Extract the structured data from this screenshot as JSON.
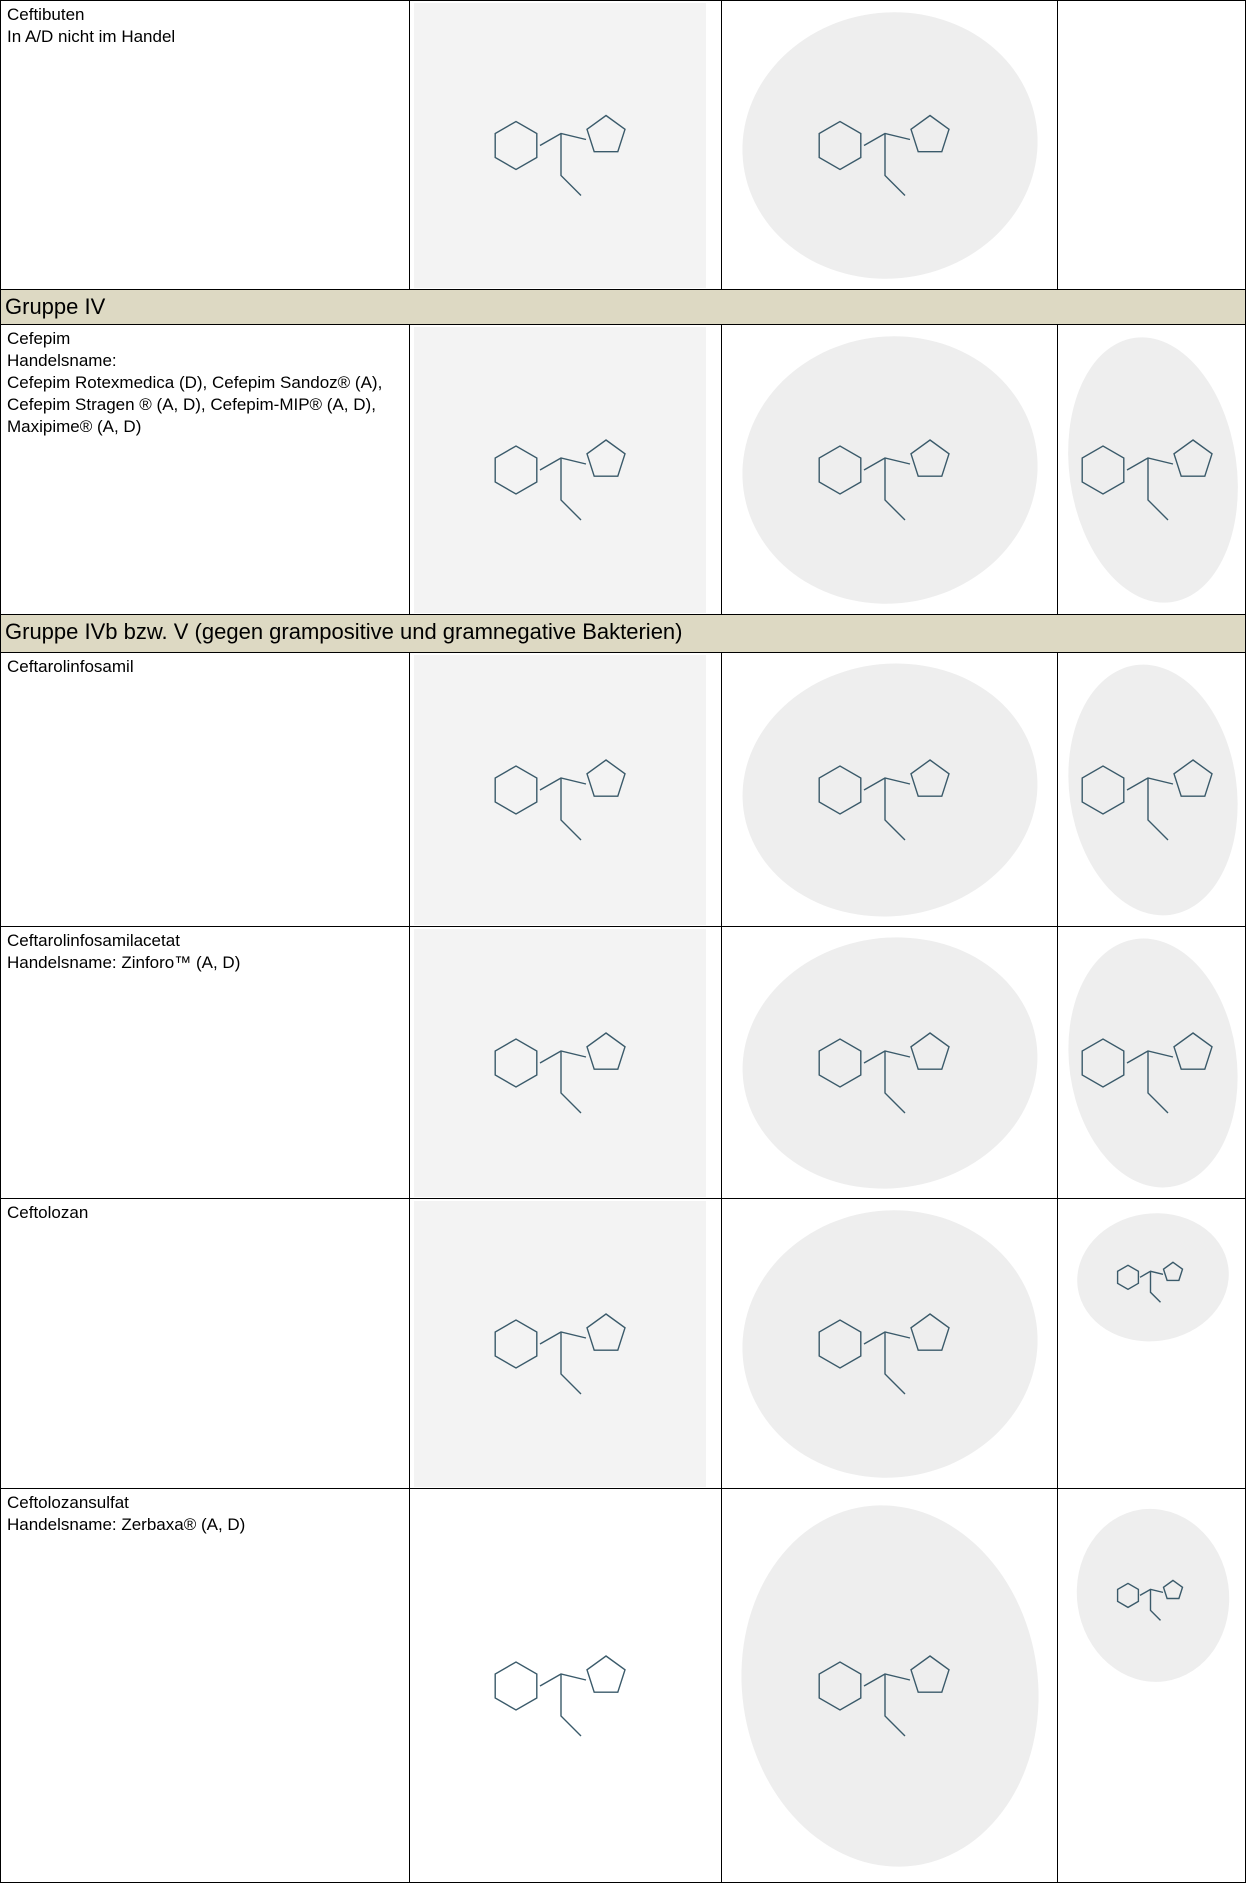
{
  "table": {
    "rows": [
      {
        "lines": [
          "Ceftibuten",
          "In A/D nicht im Handel"
        ]
      },
      {
        "group": "Gruppe IV"
      },
      {
        "lines": [
          "Cefepim",
          "Handelsname:",
          "Cefepim Rotexmedica (D), Cefepim Sandoz® (A), Cefepim Stragen ® (A, D), Cefepim-MIP® (A, D), Maxipime® (A, D)"
        ]
      },
      {
        "group": "Gruppe IVb bzw. V (gegen grampositive und gramnegative Bakterien)"
      },
      {
        "lines": [
          "Ceftarolinfosamil"
        ]
      },
      {
        "lines": [
          "Ceftarolinfosamilacetat",
          "Handelsname: Zinforo™ (A, D)"
        ]
      },
      {
        "lines": [
          "Ceftolozan"
        ]
      },
      {
        "lines": [
          "Ceftolozansulfat",
          "Handelsname: Zerbaxa® (A, D)"
        ]
      }
    ]
  }
}
